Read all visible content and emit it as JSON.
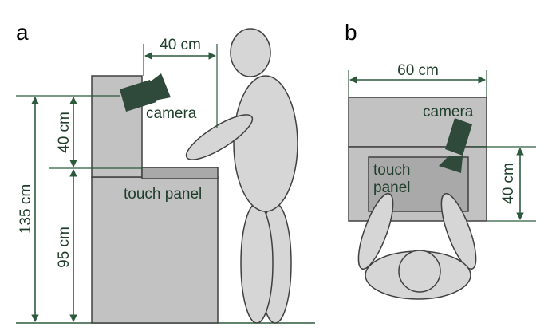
{
  "colors": {
    "dimension": "#2d5a3d",
    "label_dark": "#1e3d2a",
    "camera": "#2f4a3a",
    "cabinet": "#c2c2c2",
    "cabinet_dark": "#a9a9a9",
    "person": "#d6d6d6",
    "outline": "#404040"
  },
  "panel_a": {
    "label": "a",
    "dim_top": "40 cm",
    "dim_upper": "40 cm",
    "dim_lower": "95 cm",
    "dim_total": "135 cm",
    "camera_label": "camera",
    "touch_label": "touch panel"
  },
  "panel_b": {
    "label": "b",
    "dim_width": "60 cm",
    "dim_right": "40 cm",
    "camera_label": "camera",
    "touch_label_line1": "touch",
    "touch_label_line2": "panel"
  }
}
